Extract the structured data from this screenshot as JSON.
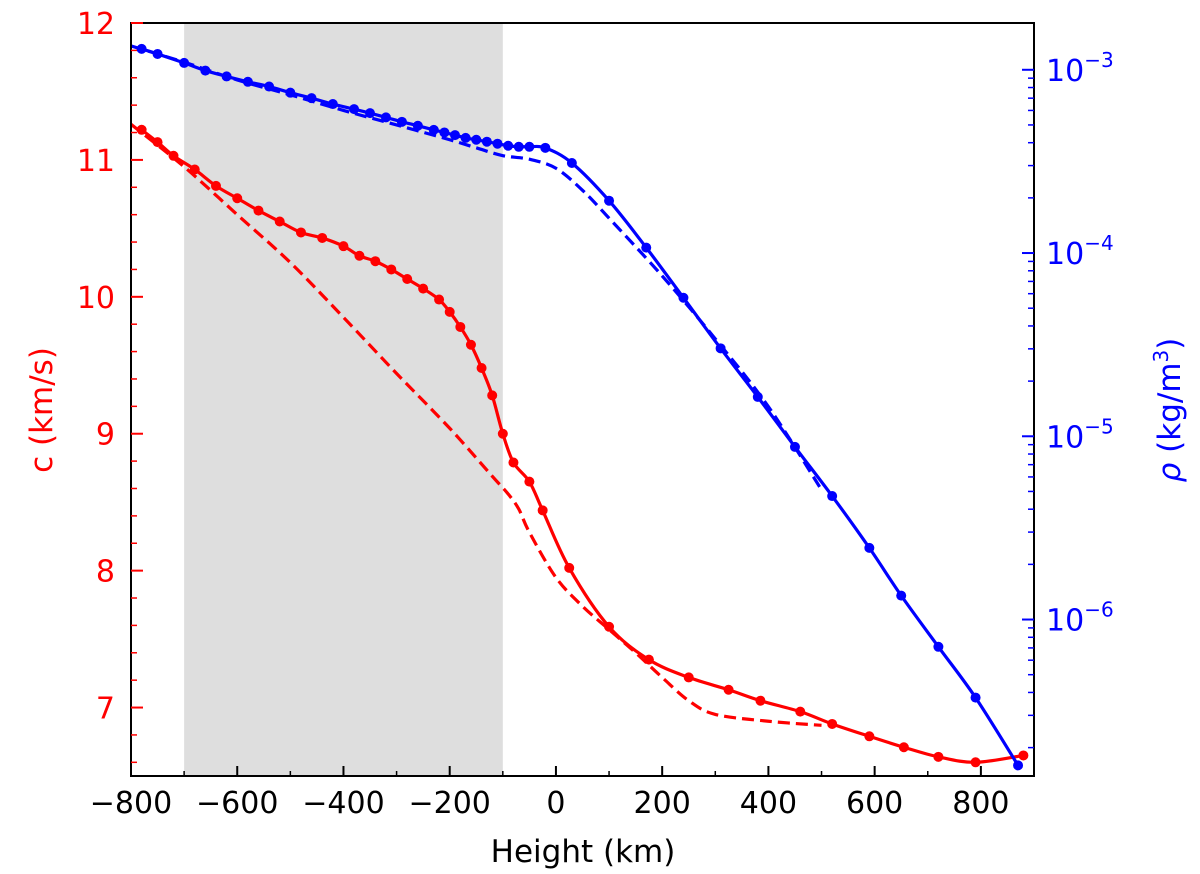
{
  "chart_data": {
    "type": "line",
    "title": "",
    "xlabel": "Height (km)",
    "ylabel_left": "c (km/s)",
    "ylabel_right_symbol": "ρ",
    "ylabel_right_unit_open": " (kg/m",
    "ylabel_right_unit_exp": "3",
    "ylabel_right_unit_close": ")",
    "xlim": [
      -800,
      900
    ],
    "ylim_left": [
      6.5,
      12.0
    ],
    "ylim_right": [
      1.4e-07,
      0.0018
    ],
    "right_scale": "log",
    "grid": false,
    "legend": "none",
    "shaded_region": {
      "x0": -700,
      "x1": -100,
      "color": "#dedede"
    },
    "x_ticks": [
      -800,
      -600,
      -400,
      -200,
      0,
      200,
      400,
      600,
      800
    ],
    "x_tick_labels": [
      "−800",
      "−600",
      "−400",
      "−200",
      "0",
      "200",
      "400",
      "600",
      "800"
    ],
    "y_left_ticks": [
      7,
      8,
      9,
      10,
      11,
      12
    ],
    "y_left_tick_labels": [
      "7",
      "8",
      "9",
      "10",
      "11",
      "12"
    ],
    "y_right_ticks": [
      1e-06,
      1e-05,
      0.0001,
      0.001
    ],
    "y_right_tick_labels": [
      {
        "base": "10",
        "exp": "−6"
      },
      {
        "base": "10",
        "exp": "−5"
      },
      {
        "base": "10",
        "exp": "−4"
      },
      {
        "base": "10",
        "exp": "−3"
      }
    ],
    "colors": {
      "c": "#ff0000",
      "rho": "#0000ff",
      "axis": "#000000"
    },
    "series": [
      {
        "axis": "left",
        "style": "solid",
        "markers": true,
        "x": [
          -780,
          -750,
          -720,
          -680,
          -640,
          -600,
          -560,
          -520,
          -480,
          -440,
          -400,
          -370,
          -340,
          -310,
          -280,
          -250,
          -220,
          -200,
          -180,
          -160,
          -140,
          -120,
          -100,
          -80,
          -50,
          -25,
          25,
          100,
          175,
          250,
          325,
          385,
          460,
          520,
          590,
          655,
          720,
          790,
          880
        ],
        "y": [
          11.22,
          11.13,
          11.03,
          10.93,
          10.81,
          10.72,
          10.63,
          10.55,
          10.47,
          10.43,
          10.37,
          10.3,
          10.26,
          10.2,
          10.13,
          10.06,
          9.98,
          9.89,
          9.78,
          9.65,
          9.48,
          9.28,
          9.0,
          8.79,
          8.65,
          8.44,
          8.02,
          7.59,
          7.35,
          7.22,
          7.13,
          7.05,
          6.97,
          6.88,
          6.79,
          6.71,
          6.64,
          6.6,
          6.65
        ]
      },
      {
        "axis": "left",
        "style": "dashed",
        "markers": false,
        "x": [
          -800,
          -700,
          -600,
          -500,
          -400,
          -300,
          -200,
          -120,
          -90,
          -70,
          -50,
          0,
          50,
          100,
          150,
          200,
          250,
          300,
          400,
          500
        ],
        "y": [
          11.26,
          10.95,
          10.6,
          10.25,
          9.85,
          9.44,
          9.04,
          8.69,
          8.56,
          8.45,
          8.28,
          7.95,
          7.74,
          7.57,
          7.4,
          7.22,
          7.05,
          6.95,
          6.9,
          6.87
        ]
      },
      {
        "axis": "right",
        "style": "solid",
        "markers": true,
        "x": [
          -780,
          -750,
          -700,
          -660,
          -620,
          -580,
          -540,
          -500,
          -460,
          -420,
          -380,
          -350,
          -320,
          -290,
          -260,
          -230,
          -210,
          -190,
          -170,
          -150,
          -130,
          -110,
          -90,
          -70,
          -50,
          -20,
          30,
          100,
          170,
          240,
          310,
          380,
          450,
          520,
          590,
          650,
          720,
          790,
          870
        ],
        "y": [
          0.0013,
          0.00122,
          0.00109,
          0.00099,
          0.00092,
          0.00086,
          0.00081,
          0.00075,
          0.0007,
          0.00065,
          0.00061,
          0.00058,
          0.00055,
          0.00052,
          0.000495,
          0.00047,
          0.000455,
          0.00044,
          0.000425,
          0.000415,
          0.000405,
          0.000395,
          0.000385,
          0.00038,
          0.00038,
          0.000375,
          0.00031,
          0.000193,
          0.000107,
          5.7e-05,
          3.02e-05,
          1.64e-05,
          8.75e-06,
          4.72e-06,
          2.46e-06,
          1.35e-06,
          7.1e-07,
          3.75e-07,
          1.6e-07
        ]
      },
      {
        "axis": "right",
        "style": "dashed",
        "markers": false,
        "x": [
          -800,
          -700,
          -600,
          -500,
          -400,
          -300,
          -200,
          -150,
          -100,
          -50,
          0,
          50,
          100,
          200,
          300,
          400,
          500
        ],
        "y": [
          0.00135,
          0.0011,
          0.00088,
          0.00073,
          0.0006,
          0.0005,
          0.000415,
          0.000375,
          0.00034,
          0.000325,
          0.00029,
          0.00022,
          0.000155,
          7.5e-05,
          3.4e-05,
          1.45e-05,
          5.1e-06
        ]
      }
    ]
  }
}
